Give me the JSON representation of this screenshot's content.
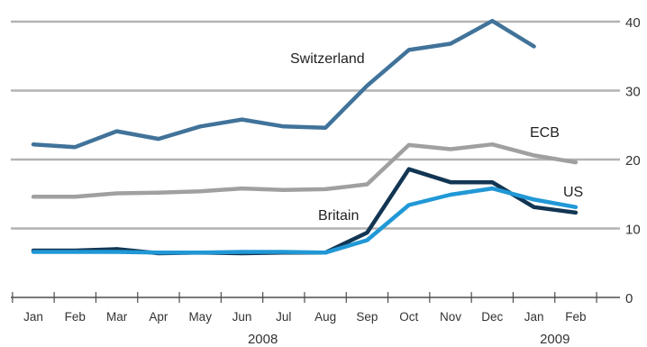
{
  "chart_data": {
    "type": "line",
    "categories": [
      "Jan",
      "Feb",
      "Mar",
      "Apr",
      "May",
      "Jun",
      "Jul",
      "Aug",
      "Sep",
      "Oct",
      "Nov",
      "Dec",
      "Jan",
      "Feb"
    ],
    "year_labels": [
      "2008",
      "2009"
    ],
    "ylim": [
      0,
      40
    ],
    "yticks": [
      0,
      10,
      20,
      30,
      40
    ],
    "grid": true,
    "y_axis_side": "right",
    "series": [
      {
        "name": "Switzerland",
        "color": "#41739a",
        "values": [
          22.2,
          21.8,
          24.1,
          23.0,
          24.8,
          25.8,
          24.8,
          24.6,
          30.7,
          35.9,
          36.8,
          40.1,
          36.4,
          null
        ]
      },
      {
        "name": "ECB",
        "color": "#a0a0a0",
        "values": [
          14.6,
          14.6,
          15.1,
          15.2,
          15.4,
          15.8,
          15.6,
          15.7,
          16.4,
          22.1,
          21.5,
          22.2,
          20.6,
          19.6
        ]
      },
      {
        "name": "Britain",
        "color": "#123553",
        "values": [
          6.8,
          6.8,
          7.0,
          6.4,
          6.5,
          6.4,
          6.5,
          6.5,
          9.4,
          18.6,
          16.7,
          16.7,
          13.1,
          12.3
        ]
      },
      {
        "name": "US",
        "color": "#2198d6",
        "values": [
          6.6,
          6.6,
          6.6,
          6.5,
          6.5,
          6.6,
          6.6,
          6.5,
          8.3,
          13.4,
          14.9,
          15.8,
          14.2,
          13.1
        ]
      }
    ]
  }
}
